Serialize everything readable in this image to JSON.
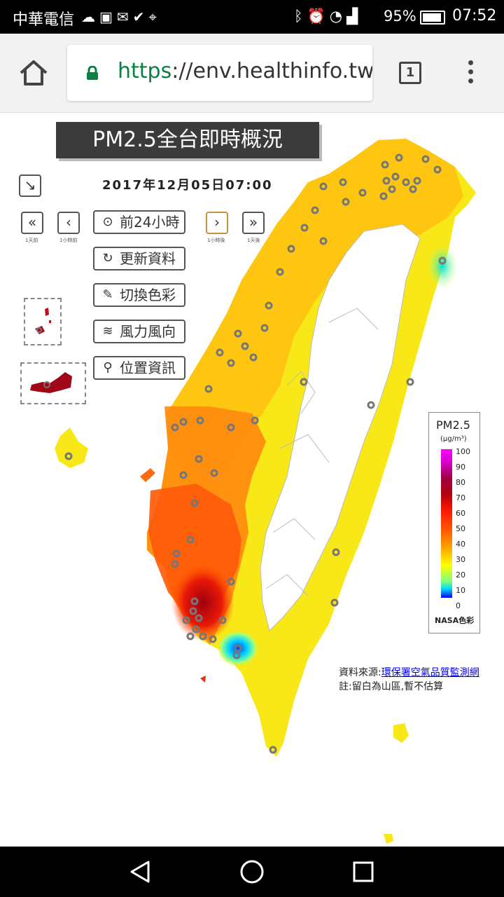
{
  "status": {
    "carrier": "中華電信",
    "left_icons": [
      "cloud-icon",
      "gmail-icon",
      "mail-icon",
      "check-icon",
      "map-icon"
    ],
    "right_icons": [
      "bluetooth-icon",
      "alarm-icon",
      "wifi-icon",
      "signal-icon"
    ],
    "battery": "95%",
    "time": "07:52"
  },
  "browser": {
    "url_scheme": "https",
    "url_rest": "://env.healthinfo.tw/",
    "tab_count": "1"
  },
  "page": {
    "title": "PM2.5全台即時概況",
    "datetime": "2017年12月05日07:00",
    "nav": {
      "day_back": "1天前",
      "hour_back": "1小時前",
      "hour_fwd": "1小時後",
      "day_fwd": "1天後"
    },
    "buttons": {
      "prev24": "前24小時",
      "refresh": "更新資料",
      "color": "切換色彩",
      "wind": "風力風向",
      "location": "位置資訊"
    },
    "legend": {
      "title": "PM2.5",
      "unit": "(μg/m³)",
      "ticks": [
        "100",
        "90",
        "80",
        "70",
        "60",
        "50",
        "40",
        "30",
        "20",
        "10",
        "0"
      ],
      "name": "NASA色彩"
    },
    "source_label": "資料來源:",
    "source_link": "環保署空氣品質監測網",
    "note": "註:留白為山區,暫不估算"
  }
}
